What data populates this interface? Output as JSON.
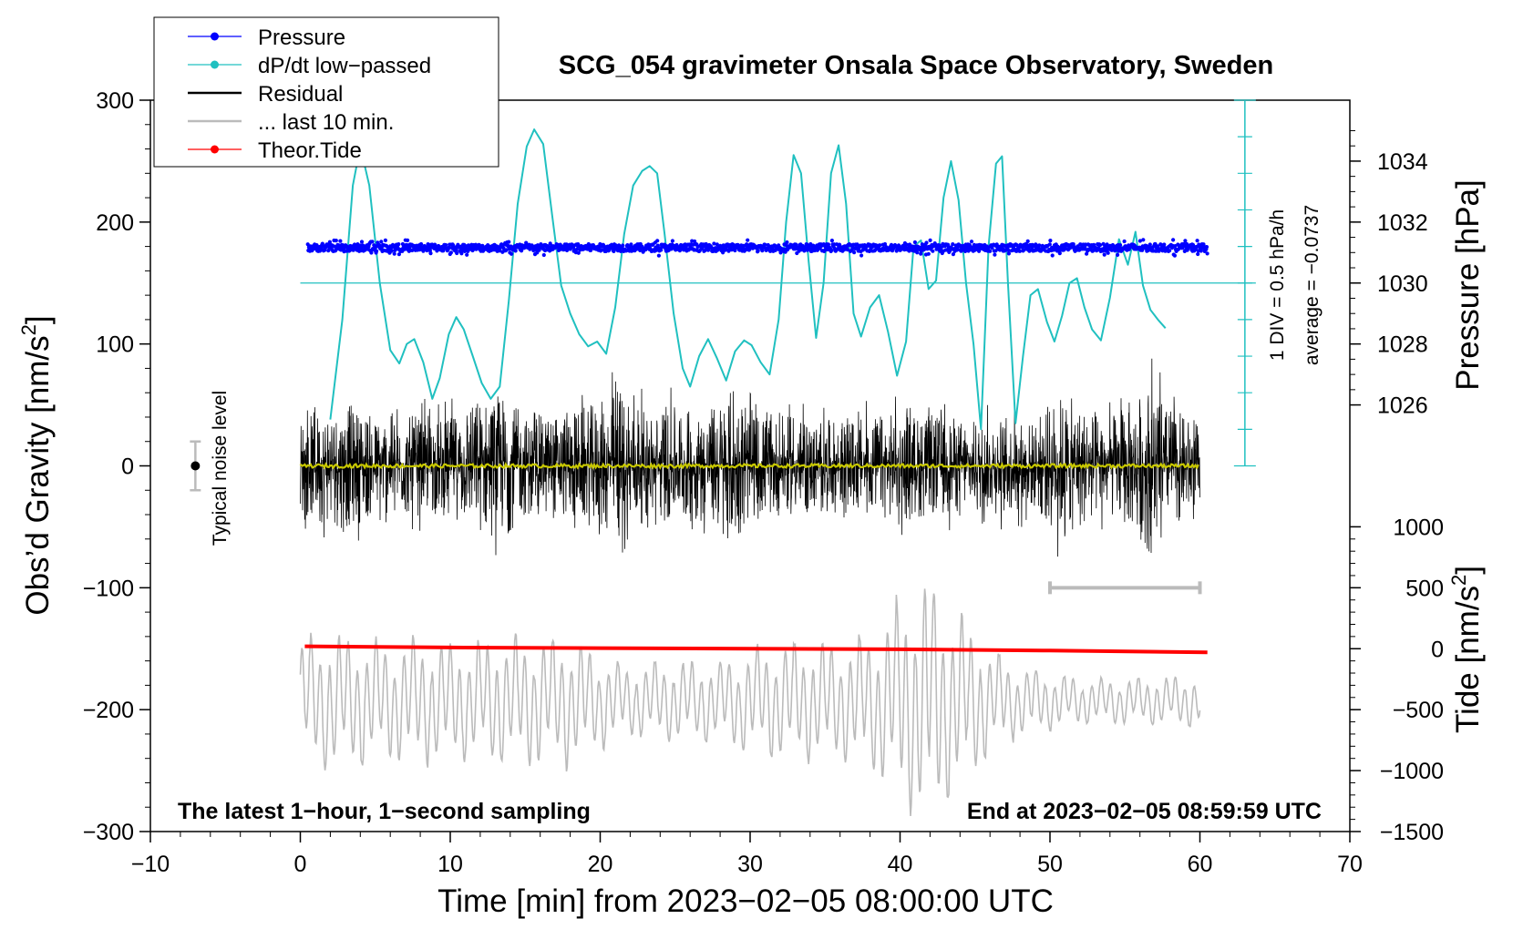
{
  "chart_data": {
    "type": "line",
    "title": "SCG_054 gravimeter Onsala Space Observatory, Sweden",
    "xlabel": "Time [min] from 2023−02−05 08:00:00 UTC",
    "ylabel_left": "Obs’d Gravity [nm/s",
    "ylabel_left_sup": "2",
    "ylabel_left_close": "]",
    "ylabel_right_pressure": "Pressure [hPa]",
    "ylabel_right_tide": "Tide [nm/s",
    "ylabel_right_tide_sup": "2",
    "ylabel_right_tide_close": "]",
    "xlim": [
      -10,
      70
    ],
    "ylim": [
      -300,
      300
    ],
    "x_ticks": [
      -10,
      0,
      10,
      20,
      30,
      40,
      50,
      60,
      70
    ],
    "x_tick_labels": [
      "−10",
      "0",
      "10",
      "20",
      "30",
      "40",
      "50",
      "60",
      "70"
    ],
    "y_ticks": [
      300,
      200,
      100,
      0,
      -100,
      -200,
      -300
    ],
    "y_tick_labels": [
      "300",
      "200",
      "100",
      "0",
      "−100",
      "−200",
      "−300"
    ],
    "pressure_axis": {
      "ticks": [
        1034,
        1032,
        1030,
        1028,
        1026
      ],
      "tick_labels": [
        "1034",
        "1032",
        "1030",
        "1028",
        "1026"
      ],
      "gravity_equiv": [
        250,
        200,
        150,
        100,
        50
      ]
    },
    "tide_axis": {
      "ticks": [
        1000,
        500,
        0,
        -500,
        -1000,
        -1500
      ],
      "tick_labels": [
        "1000",
        "500",
        "0",
        "−500",
        "−1000",
        "−1500"
      ],
      "gravity_equiv": [
        -50,
        -100,
        -150,
        -200,
        -250,
        -300
      ]
    },
    "legend": {
      "position": "top-left",
      "entries": [
        {
          "label": "Pressure",
          "color": "#0000ff",
          "marker": true
        },
        {
          "label": "dP/dt low−passed",
          "color": "#20c0c0",
          "marker": true
        },
        {
          "label": "Residual",
          "color": "#000000",
          "marker": false
        },
        {
          "label": "... last 10 min.",
          "color": "#bbbbbb",
          "marker": false
        },
        {
          "label": "Theor.Tide",
          "color": "#ff0000",
          "marker": true
        }
      ]
    },
    "annotations": {
      "bottom_left": "The latest 1−hour, 1−second sampling",
      "bottom_right": "End at 2023−02−05 08:59:59 UTC",
      "noise_label": "Typical noise level",
      "div_label": "1 DIV = 0.5 hPa/h",
      "average_label": "average = −0.0737"
    },
    "noise_bar": {
      "x": -7,
      "center": 0,
      "half_range": 20
    },
    "last10_bar": {
      "x_start": 50,
      "x_end": 60,
      "y": -100
    },
    "dpdt_axis": {
      "x": 63,
      "y_bottom": 0,
      "y_top": 300,
      "division": 30,
      "baseline_y": 150
    },
    "series": [
      {
        "name": "dP/dt low−passed",
        "color": "#20c0c0",
        "x": [
          2,
          2.8,
          3.5,
          4,
          4.6,
          5.3,
          6.0,
          6.6,
          7.1,
          7.6,
          8.2,
          8.8,
          9.3,
          9.9,
          10.4,
          10.9,
          11.5,
          12.1,
          12.7,
          13.3,
          13.9,
          14.5,
          15.1,
          15.6,
          16.2,
          16.8,
          17.4,
          18.0,
          18.6,
          19.2,
          19.8,
          20.4,
          21.0,
          21.6,
          22.2,
          22.8,
          23.3,
          23.8,
          24.3,
          24.9,
          25.5,
          26.0,
          26.6,
          27.2,
          27.8,
          28.4,
          29.0,
          29.6,
          30.1,
          30.7,
          31.3,
          31.9,
          32.4,
          32.9,
          33.4,
          33.9,
          34.4,
          34.9,
          35.4,
          35.9,
          36.4,
          36.9,
          37.4,
          38.0,
          38.6,
          39.2,
          39.8,
          40.4,
          40.9,
          41.4,
          41.9,
          42.4,
          42.9,
          43.4,
          43.9,
          44.4,
          44.9,
          45.4,
          45.9,
          46.4,
          46.8,
          47.2,
          47.7,
          48.2,
          48.7,
          49.2,
          49.8,
          50.3,
          50.8,
          51.3,
          51.8,
          52.3,
          52.8,
          53.4,
          54.0,
          54.6,
          55.2,
          55.7,
          56.2,
          56.7,
          57.2,
          57.7
        ],
        "values": [
          38,
          120,
          230,
          262,
          230,
          150,
          95,
          84,
          100,
          104,
          85,
          55,
          72,
          108,
          122,
          112,
          90,
          68,
          55,
          65,
          135,
          215,
          262,
          276,
          264,
          205,
          148,
          125,
          108,
          98,
          102,
          92,
          130,
          190,
          230,
          242,
          246,
          240,
          190,
          125,
          80,
          65,
          90,
          104,
          88,
          70,
          94,
          103,
          99,
          85,
          75,
          120,
          200,
          255,
          240,
          168,
          105,
          150,
          240,
          263,
          215,
          125,
          106,
          130,
          140,
          110,
          74,
          102,
          180,
          185,
          145,
          152,
          220,
          250,
          218,
          150,
          100,
          30,
          180,
          248,
          254,
          150,
          35,
          90,
          140,
          145,
          118,
          102,
          123,
          150,
          154,
          130,
          112,
          103,
          138,
          186,
          165,
          192,
          148,
          128,
          120,
          113
        ]
      },
      {
        "name": "Pressure",
        "color": "#0000ff",
        "x_start": 0.5,
        "x_end": 60.5,
        "mean": 179,
        "scatter": 3
      },
      {
        "name": "Residual",
        "color": "#000000",
        "x_start": 0,
        "x_end": 60,
        "envelope": [
          [
            0,
            55
          ],
          [
            3,
            70
          ],
          [
            5,
            55
          ],
          [
            8,
            55
          ],
          [
            10,
            55
          ],
          [
            12,
            75
          ],
          [
            13.5,
            80
          ],
          [
            15,
            55
          ],
          [
            18,
            60
          ],
          [
            20,
            70
          ],
          [
            21.3,
            90
          ],
          [
            23,
            60
          ],
          [
            25,
            65
          ],
          [
            27,
            60
          ],
          [
            28.8,
            85
          ],
          [
            30,
            60
          ],
          [
            32,
            55
          ],
          [
            35,
            50
          ],
          [
            38,
            55
          ],
          [
            40,
            60
          ],
          [
            43,
            55
          ],
          [
            45,
            50
          ],
          [
            47,
            55
          ],
          [
            49,
            50
          ],
          [
            50.5,
            80
          ],
          [
            52,
            70
          ],
          [
            54,
            55
          ],
          [
            56,
            80
          ],
          [
            56.8,
            100
          ],
          [
            57.5,
            70
          ],
          [
            60,
            45
          ]
        ]
      },
      {
        "name": "... last 10 min.",
        "color": "#bbbbbb",
        "x_start": 0,
        "x_end": 60,
        "base": -193,
        "envelope": [
          [
            0,
            55
          ],
          [
            2,
            60
          ],
          [
            4,
            55
          ],
          [
            6,
            50
          ],
          [
            8,
            55
          ],
          [
            10,
            50
          ],
          [
            14,
            55
          ],
          [
            18,
            55
          ],
          [
            20,
            40
          ],
          [
            22,
            30
          ],
          [
            24,
            35
          ],
          [
            26,
            35
          ],
          [
            28,
            35
          ],
          [
            30,
            45
          ],
          [
            32,
            50
          ],
          [
            36,
            50
          ],
          [
            38,
            60
          ],
          [
            40,
            90
          ],
          [
            42,
            105
          ],
          [
            44,
            75
          ],
          [
            46,
            45
          ],
          [
            48,
            30
          ],
          [
            50,
            25
          ],
          [
            52,
            20
          ],
          [
            56,
            20
          ],
          [
            60,
            22
          ]
        ]
      },
      {
        "name": "Theor.Tide",
        "color": "#ff0000",
        "x": [
          0.3,
          10,
          20,
          30,
          40,
          50,
          60.5
        ],
        "values": [
          -148,
          -149,
          -149.5,
          -150,
          -150.5,
          -151.5,
          -153
        ]
      },
      {
        "name": "Residual mean",
        "color": "#c8c800",
        "x_start": 0,
        "x_end": 60,
        "mean": 0
      }
    ]
  }
}
